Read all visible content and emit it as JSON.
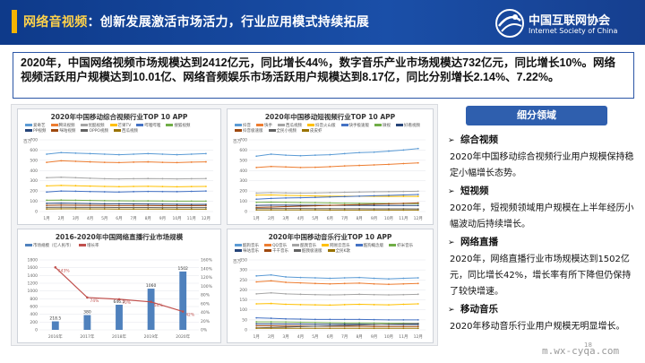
{
  "header": {
    "title_highlight": "网络音视频",
    "title_rest": "：创新发展激活市场活力，行业应用模式持续拓展",
    "logo_cn": "中国互联网协会",
    "logo_en": "Internet Society of China"
  },
  "summary": {
    "text": "2020年，中国网络视频市场规模达到2412亿元，同比增长44%，数字音乐产业市场规模达732亿元，同比增长10%。网络视频活跃用户规模达到10.01亿、网络音频娱乐市场活跃用户规模达到8.17亿，同比分别增长2.14%、7.22%。"
  },
  "colors": {
    "header_bg": "#0e3a8a",
    "accent": "#f5b400",
    "panel_border": "#2b56a6",
    "tab_bg": "#2f5fae"
  },
  "sidebar": {
    "tab_label": "细分领域",
    "items": [
      {
        "title": "综合视频",
        "text": "2020年中国移动综合视频行业用户规模保持稳定小幅增长态势。"
      },
      {
        "title": "短视频",
        "text": "2020年，短视频领域用户规模在上半年经历小幅波动后持续增长。"
      },
      {
        "title": "网络直播",
        "text": "2020年，网络直播行业市场规模达到1502亿元，同比增长42%，增长率有所下降但仍保持了较快增速。"
      },
      {
        "title": "移动音乐",
        "text": "2020年移动音乐行业用户规模无明显增长。"
      }
    ]
  },
  "watermark": "m.wx-cyqa.com",
  "page_number": "18",
  "chart_data": [
    {
      "type": "line",
      "title": "2020年中国移动综合视频行业TOP 10 APP",
      "ylabel": "百万",
      "x": [
        "1月",
        "2月",
        "3月",
        "4月",
        "5月",
        "6月",
        "7月",
        "8月",
        "9月",
        "10月",
        "11月",
        "12月"
      ],
      "ylim": [
        0,
        700
      ],
      "ticks": [
        0,
        100,
        200,
        300,
        400,
        500,
        600,
        700
      ],
      "series": [
        {
          "name": "爱奇艺",
          "color": "#5b9bd5",
          "values": [
            560,
            575,
            570,
            565,
            560,
            555,
            560,
            565,
            560,
            555,
            560,
            565
          ]
        },
        {
          "name": "腾讯视频",
          "color": "#ed7d31",
          "values": [
            480,
            495,
            490,
            485,
            480,
            478,
            482,
            485,
            480,
            478,
            482,
            485
          ]
        },
        {
          "name": "优酷视频",
          "color": "#a5a5a5",
          "values": [
            330,
            335,
            330,
            325,
            320,
            318,
            320,
            322,
            320,
            318,
            320,
            322
          ]
        },
        {
          "name": "芒果TV",
          "color": "#ffc000",
          "values": [
            250,
            255,
            252,
            248,
            245,
            243,
            245,
            246,
            244,
            242,
            244,
            245
          ]
        },
        {
          "name": "哔哩哔哩",
          "color": "#4472c4",
          "values": [
            190,
            200,
            198,
            195,
            192,
            190,
            194,
            196,
            195,
            194,
            197,
            200
          ]
        },
        {
          "name": "搜狐视频",
          "color": "#70ad47",
          "values": [
            110,
            112,
            110,
            108,
            106,
            105,
            104,
            104,
            103,
            102,
            102,
            102
          ]
        },
        {
          "name": "PP视频",
          "color": "#264478",
          "values": [
            80,
            82,
            80,
            78,
            76,
            75,
            74,
            73,
            72,
            71,
            70,
            70
          ]
        },
        {
          "name": "咪咕视频",
          "color": "#9e480e",
          "values": [
            60,
            62,
            61,
            60,
            59,
            58,
            58,
            58,
            57,
            57,
            57,
            58
          ]
        },
        {
          "name": "OPPO视频",
          "color": "#636363",
          "values": [
            40,
            42,
            41,
            40,
            40,
            39,
            39,
            39,
            38,
            38,
            38,
            38
          ]
        },
        {
          "name": "西瓜视频",
          "color": "#997300",
          "values": [
            25,
            26,
            26,
            25,
            25,
            24,
            24,
            24,
            24,
            23,
            23,
            23
          ]
        }
      ]
    },
    {
      "type": "line",
      "title": "2020年中国移动短视频行业TOP 10 APP",
      "ylabel": "百万",
      "x": [
        "1月",
        "2月",
        "3月",
        "4月",
        "5月",
        "6月",
        "7月",
        "8月",
        "9月",
        "10月",
        "11月",
        "12月"
      ],
      "ylim": [
        0,
        700
      ],
      "ticks": [
        0,
        100,
        200,
        300,
        400,
        500,
        600,
        700
      ],
      "series": [
        {
          "name": "抖音",
          "color": "#5b9bd5",
          "values": [
            540,
            560,
            550,
            545,
            550,
            555,
            565,
            575,
            580,
            590,
            600,
            615
          ]
        },
        {
          "name": "快手",
          "color": "#ed7d31",
          "values": [
            430,
            440,
            435,
            430,
            432,
            438,
            445,
            450,
            455,
            460,
            468,
            475
          ]
        },
        {
          "name": "西瓜视频",
          "color": "#a5a5a5",
          "values": [
            180,
            185,
            182,
            180,
            182,
            185,
            188,
            190,
            192,
            194,
            196,
            198
          ]
        },
        {
          "name": "抖音火山版",
          "color": "#ffc000",
          "values": [
            160,
            162,
            158,
            155,
            152,
            150,
            150,
            150,
            149,
            148,
            148,
            148
          ]
        },
        {
          "name": "快手极速版",
          "color": "#4472c4",
          "values": [
            120,
            128,
            132,
            135,
            138,
            142,
            146,
            150,
            154,
            158,
            162,
            166
          ]
        },
        {
          "name": "微视",
          "color": "#70ad47",
          "values": [
            90,
            92,
            90,
            88,
            86,
            84,
            82,
            81,
            80,
            79,
            78,
            78
          ]
        },
        {
          "name": "好看视频",
          "color": "#264478",
          "values": [
            60,
            62,
            62,
            61,
            61,
            60,
            60,
            60,
            59,
            59,
            59,
            59
          ]
        },
        {
          "name": "抖音极速版",
          "color": "#9e480e",
          "values": [
            40,
            44,
            48,
            52,
            56,
            60,
            64,
            68,
            72,
            76,
            80,
            84
          ]
        },
        {
          "name": "全民小视频",
          "color": "#636363",
          "values": [
            30,
            30,
            29,
            29,
            28,
            28,
            27,
            27,
            26,
            26,
            26,
            25
          ]
        },
        {
          "name": "皮皮虾",
          "color": "#997300",
          "values": [
            15,
            15,
            15,
            15,
            15,
            14,
            14,
            14,
            14,
            14,
            14,
            14
          ]
        }
      ]
    },
    {
      "type": "bar",
      "title": "2016-2020年中国网络直播行业市场规模",
      "categories": [
        "2016年",
        "2017年",
        "2018年",
        "2019年",
        "2020年"
      ],
      "ylim": [
        0,
        1800
      ],
      "ticks": [
        0,
        200,
        400,
        600,
        800,
        1000,
        1200,
        1400,
        1600,
        1800
      ],
      "series": [
        {
          "name": "市场规模（亿人民币）",
          "color": "#4f81bd",
          "values": [
            218.5,
            380,
            646.2,
            1060,
            1502
          ]
        },
        {
          "name": "增长率",
          "color": "#c0504d",
          "values": [
            143,
            74,
            70,
            64,
            42
          ]
        }
      ],
      "y2lim": [
        0,
        160
      ],
      "y2ticks": [
        "0%",
        "20%",
        "40%",
        "60%",
        "80%",
        "100%",
        "120%",
        "140%",
        "160%"
      ],
      "data_labels": [
        "218.5",
        "380",
        "646.2",
        "1060",
        "1502"
      ],
      "rate_labels": [
        "143%",
        "74%",
        "70%",
        "64%",
        "42%"
      ]
    },
    {
      "type": "line",
      "title": "2020年中国移动音乐行业TOP 10 APP",
      "ylabel": "百万",
      "x": [
        "1月",
        "2月",
        "3月",
        "4月",
        "5月",
        "6月",
        "7月",
        "8月",
        "9月",
        "10月",
        "11月",
        "12月"
      ],
      "ylim": [
        0,
        350
      ],
      "ticks": [
        0,
        50,
        100,
        150,
        200,
        250,
        300,
        350
      ],
      "series": [
        {
          "name": "酷狗音乐",
          "color": "#5b9bd5",
          "values": [
            270,
            275,
            265,
            262,
            260,
            258,
            260,
            262,
            258,
            255,
            258,
            260
          ]
        },
        {
          "name": "QQ音乐",
          "color": "#ed7d31",
          "values": [
            240,
            245,
            238,
            235,
            232,
            230,
            232,
            234,
            230,
            228,
            230,
            232
          ]
        },
        {
          "name": "酷我音乐",
          "color": "#a5a5a5",
          "values": [
            180,
            185,
            180,
            178,
            176,
            175,
            176,
            178,
            176,
            175,
            176,
            178
          ]
        },
        {
          "name": "网易云音乐",
          "color": "#ffc000",
          "values": [
            130,
            132,
            128,
            126,
            125,
            124,
            126,
            128,
            126,
            125,
            128,
            130
          ]
        },
        {
          "name": "酷狗概念版",
          "color": "#4472c4",
          "values": [
            60,
            58,
            55,
            54,
            52,
            52,
            52,
            52,
            51,
            50,
            50,
            50
          ]
        },
        {
          "name": "虾米音乐",
          "color": "#70ad47",
          "values": [
            40,
            40,
            39,
            38,
            37,
            36,
            35,
            35,
            34,
            33,
            33,
            32
          ]
        },
        {
          "name": "咪咕音乐",
          "color": "#264478",
          "values": [
            30,
            30,
            29,
            29,
            28,
            28,
            28,
            28,
            27,
            27,
            27,
            27
          ]
        },
        {
          "name": "千千音乐",
          "color": "#9e480e",
          "values": [
            20,
            20,
            19,
            19,
            18,
            18,
            18,
            18,
            17,
            17,
            17,
            17
          ]
        },
        {
          "name": "酷我极速版",
          "color": "#636363",
          "values": [
            10,
            12,
            14,
            16,
            18,
            20,
            22,
            24,
            26,
            28,
            30,
            32
          ]
        },
        {
          "name": "全民K歌",
          "color": "#997300",
          "values": [
            8,
            8,
            8,
            8,
            8,
            8,
            8,
            8,
            8,
            8,
            8,
            8
          ]
        }
      ]
    }
  ]
}
